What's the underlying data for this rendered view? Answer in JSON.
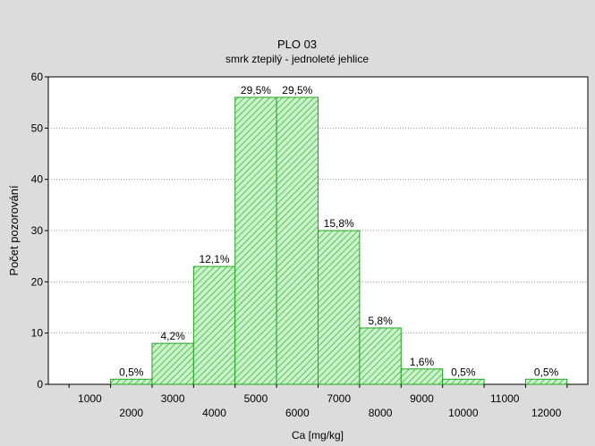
{
  "chart_data": {
    "type": "bar",
    "title": "PLO 03",
    "subtitle": "smrk ztepilý - jednoleté jehlice",
    "xlabel": "Ca [mg/kg]",
    "ylabel": "Počet pozorování",
    "xlim": [
      0,
      13000
    ],
    "ylim": [
      0,
      60
    ],
    "y_ticks": [
      0,
      10,
      20,
      30,
      40,
      50,
      60
    ],
    "x_ticks_upper": [
      "1000",
      "3000",
      "5000",
      "7000",
      "9000",
      "11000"
    ],
    "x_ticks_lower": [
      "2000",
      "4000",
      "6000",
      "8000",
      "10000",
      "12000"
    ],
    "grid": "horizontal dotted",
    "bins": [
      {
        "x0": 1500,
        "x1": 2500,
        "value": 1,
        "label": "0,5%"
      },
      {
        "x0": 2500,
        "x1": 3500,
        "value": 8,
        "label": "4,2%"
      },
      {
        "x0": 3500,
        "x1": 4500,
        "value": 23,
        "label": "12,1%"
      },
      {
        "x0": 4500,
        "x1": 5500,
        "value": 56,
        "label": "29,5%"
      },
      {
        "x0": 5500,
        "x1": 6500,
        "value": 56,
        "label": "29,5%"
      },
      {
        "x0": 6500,
        "x1": 7500,
        "value": 30,
        "label": "15,8%"
      },
      {
        "x0": 7500,
        "x1": 8500,
        "value": 11,
        "label": "5,8%"
      },
      {
        "x0": 8500,
        "x1": 9500,
        "value": 3,
        "label": "1,6%"
      },
      {
        "x0": 9500,
        "x1": 10500,
        "value": 1,
        "label": "0,5%"
      },
      {
        "x0": 11500,
        "x1": 12500,
        "value": 1,
        "label": "0,5%"
      }
    ],
    "colors": {
      "bar_fill": "#ccf2cc",
      "bar_edge": "#1ea81e",
      "hatch": "#38b838"
    }
  }
}
